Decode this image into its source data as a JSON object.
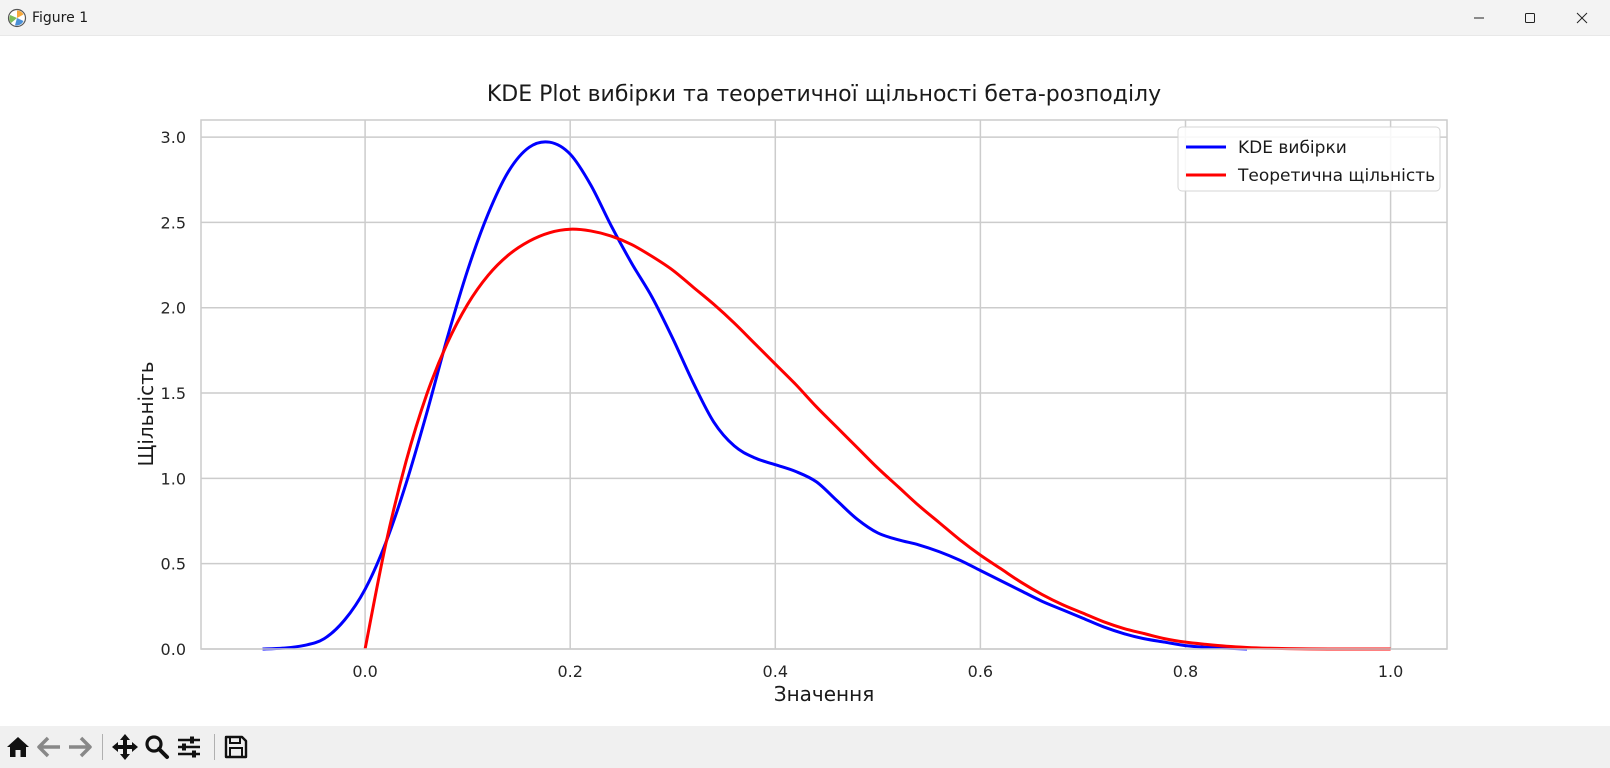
{
  "window": {
    "title": "Figure 1",
    "icons": {
      "app": "matplotlib-icon",
      "minimize": "minimize-icon",
      "maximize": "maximize-icon",
      "close": "close-icon"
    }
  },
  "toolbar": {
    "items": [
      "home-icon",
      "back-arrow-icon",
      "forward-arrow-icon",
      "pan-icon",
      "zoom-icon",
      "configure-subplots-icon",
      "save-icon"
    ]
  },
  "colors": {
    "kde": "#0000ff",
    "theory": "#ff0000",
    "grid": "#cccccc",
    "axes_edge": "#cccccc"
  },
  "chart_data": {
    "type": "line",
    "title": "KDE Plot вибірки та теоретичної щільності бета-розподілу",
    "xlabel": "Значення",
    "ylabel": "Щільність",
    "xlim": [
      -0.16,
      1.055
    ],
    "ylim": [
      0,
      3.1
    ],
    "xticks": [
      0.0,
      0.2,
      0.4,
      0.6,
      0.8,
      1.0
    ],
    "xtick_labels": [
      "0.0",
      "0.2",
      "0.4",
      "0.6",
      "0.8",
      "1.0"
    ],
    "yticks": [
      0.0,
      0.5,
      1.0,
      1.5,
      2.0,
      2.5,
      3.0
    ],
    "ytick_labels": [
      "0.0",
      "0.5",
      "1.0",
      "1.5",
      "2.0",
      "2.5",
      "3.0"
    ],
    "grid": true,
    "legend": "top-right",
    "series": [
      {
        "name": "KDE вибірки",
        "color": "#0000ff",
        "x": [
          -0.1,
          -0.08,
          -0.06,
          -0.04,
          -0.02,
          0.0,
          0.02,
          0.04,
          0.06,
          0.08,
          0.1,
          0.12,
          0.14,
          0.16,
          0.18,
          0.2,
          0.22,
          0.24,
          0.26,
          0.28,
          0.3,
          0.32,
          0.34,
          0.36,
          0.38,
          0.4,
          0.42,
          0.44,
          0.46,
          0.48,
          0.5,
          0.52,
          0.54,
          0.56,
          0.58,
          0.6,
          0.62,
          0.64,
          0.66,
          0.68,
          0.7,
          0.72,
          0.74,
          0.76,
          0.78,
          0.8,
          0.82,
          0.84,
          0.86
        ],
        "y": [
          0.0,
          0.005,
          0.02,
          0.06,
          0.17,
          0.35,
          0.62,
          0.97,
          1.38,
          1.82,
          2.22,
          2.55,
          2.8,
          2.94,
          2.97,
          2.9,
          2.72,
          2.48,
          2.26,
          2.06,
          1.82,
          1.56,
          1.33,
          1.19,
          1.12,
          1.08,
          1.04,
          0.98,
          0.87,
          0.76,
          0.68,
          0.64,
          0.61,
          0.57,
          0.52,
          0.46,
          0.4,
          0.34,
          0.28,
          0.23,
          0.18,
          0.13,
          0.09,
          0.06,
          0.04,
          0.02,
          0.01,
          0.005,
          0.0
        ]
      },
      {
        "name": "Теоретична щільність",
        "color": "#ff0000",
        "x": [
          0.0,
          0.02,
          0.04,
          0.06,
          0.08,
          0.1,
          0.12,
          0.14,
          0.16,
          0.18,
          0.2,
          0.22,
          0.24,
          0.26,
          0.28,
          0.3,
          0.32,
          0.34,
          0.36,
          0.38,
          0.4,
          0.42,
          0.44,
          0.46,
          0.48,
          0.5,
          0.52,
          0.54,
          0.56,
          0.58,
          0.6,
          0.62,
          0.64,
          0.66,
          0.68,
          0.7,
          0.72,
          0.74,
          0.76,
          0.78,
          0.8,
          0.82,
          0.84,
          0.86,
          0.88,
          0.9,
          0.92,
          0.94,
          0.96,
          0.98,
          1.0
        ],
        "y": [
          0.0,
          0.61,
          1.1,
          1.49,
          1.79,
          2.02,
          2.19,
          2.31,
          2.39,
          2.44,
          2.46,
          2.45,
          2.42,
          2.37,
          2.3,
          2.22,
          2.12,
          2.02,
          1.91,
          1.79,
          1.67,
          1.55,
          1.42,
          1.3,
          1.18,
          1.06,
          0.95,
          0.84,
          0.74,
          0.64,
          0.55,
          0.47,
          0.39,
          0.32,
          0.26,
          0.21,
          0.16,
          0.12,
          0.09,
          0.06,
          0.04,
          0.027,
          0.016,
          0.009,
          0.0045,
          0.002,
          0.0008,
          0.0002,
          4e-05,
          0.0,
          0.0
        ]
      }
    ]
  }
}
